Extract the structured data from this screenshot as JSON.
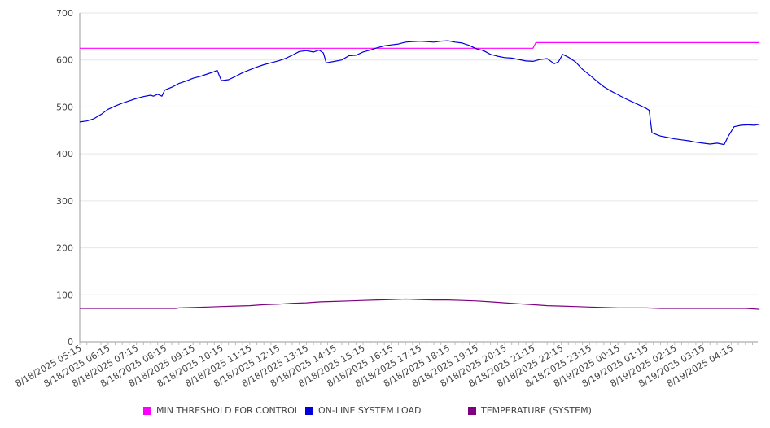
{
  "chart_data": {
    "type": "line",
    "title": "",
    "xlabel": "",
    "ylabel": "",
    "ylim": [
      0,
      700
    ],
    "yticks": [
      0,
      100,
      200,
      300,
      400,
      500,
      600,
      700
    ],
    "grid": true,
    "legend_position": "bottom",
    "x_tick_labels": [
      "8/18/2025 05:15",
      "8/18/2025 06:15",
      "8/18/2025 07:15",
      "8/18/2025 08:15",
      "8/18/2025 09:15",
      "8/18/2025 10:15",
      "8/18/2025 11:15",
      "8/18/2025 12:15",
      "8/18/2025 13:15",
      "8/18/2025 14:15",
      "8/18/2025 15:15",
      "8/18/2025 16:15",
      "8/18/2025 17:15",
      "8/18/2025 18:15",
      "8/18/2025 19:15",
      "8/18/2025 20:15",
      "8/18/2025 21:15",
      "8/18/2025 22:15",
      "8/18/2025 23:15",
      "8/19/2025 00:15",
      "8/19/2025 01:15",
      "8/19/2025 02:15",
      "8/19/2025 03:15",
      "8/19/2025 04:15"
    ],
    "series": [
      {
        "name": "MIN THRESHOLD FOR CONTROL",
        "color": "#ff00ff",
        "points": [
          [
            0,
            625
          ],
          [
            16,
            625
          ],
          [
            16.1,
            637
          ],
          [
            24,
            637
          ]
        ]
      },
      {
        "name": "ON-LINE SYSTEM LOAD",
        "color": "#0000dd",
        "points": [
          [
            0,
            468
          ],
          [
            0.25,
            470
          ],
          [
            0.5,
            475
          ],
          [
            0.75,
            484
          ],
          [
            1,
            495
          ],
          [
            1.25,
            502
          ],
          [
            1.5,
            508
          ],
          [
            1.75,
            513
          ],
          [
            2,
            518
          ],
          [
            2.25,
            522
          ],
          [
            2.5,
            525
          ],
          [
            2.6,
            523
          ],
          [
            2.75,
            527
          ],
          [
            2.9,
            523
          ],
          [
            3,
            536
          ],
          [
            3.25,
            542
          ],
          [
            3.5,
            550
          ],
          [
            3.75,
            555
          ],
          [
            4,
            561
          ],
          [
            4.25,
            565
          ],
          [
            4.5,
            570
          ],
          [
            4.75,
            575
          ],
          [
            4.85,
            578
          ],
          [
            5,
            556
          ],
          [
            5.25,
            558
          ],
          [
            5.5,
            565
          ],
          [
            5.75,
            573
          ],
          [
            6,
            579
          ],
          [
            6.25,
            585
          ],
          [
            6.5,
            590
          ],
          [
            6.75,
            594
          ],
          [
            7,
            598
          ],
          [
            7.25,
            603
          ],
          [
            7.5,
            610
          ],
          [
            7.75,
            618
          ],
          [
            8,
            620
          ],
          [
            8.25,
            617
          ],
          [
            8.45,
            621
          ],
          [
            8.6,
            615
          ],
          [
            8.7,
            594
          ],
          [
            9,
            597
          ],
          [
            9.25,
            600
          ],
          [
            9.5,
            609
          ],
          [
            9.75,
            610
          ],
          [
            10,
            617
          ],
          [
            10.25,
            621
          ],
          [
            10.5,
            626
          ],
          [
            10.75,
            630
          ],
          [
            11,
            632
          ],
          [
            11.25,
            634
          ],
          [
            11.5,
            638
          ],
          [
            11.75,
            639
          ],
          [
            12,
            640
          ],
          [
            12.25,
            639
          ],
          [
            12.5,
            638
          ],
          [
            12.75,
            640
          ],
          [
            13,
            641
          ],
          [
            13.25,
            638
          ],
          [
            13.5,
            636
          ],
          [
            13.75,
            631
          ],
          [
            14,
            624
          ],
          [
            14.25,
            620
          ],
          [
            14.5,
            612
          ],
          [
            14.75,
            608
          ],
          [
            15,
            605
          ],
          [
            15.25,
            604
          ],
          [
            15.5,
            601
          ],
          [
            15.75,
            598
          ],
          [
            16,
            597
          ],
          [
            16.25,
            601
          ],
          [
            16.5,
            603
          ],
          [
            16.75,
            592
          ],
          [
            16.9,
            596
          ],
          [
            17.05,
            612
          ],
          [
            17.25,
            606
          ],
          [
            17.5,
            596
          ],
          [
            17.75,
            580
          ],
          [
            18,
            568
          ],
          [
            18.25,
            555
          ],
          [
            18.5,
            543
          ],
          [
            18.75,
            534
          ],
          [
            19,
            526
          ],
          [
            19.25,
            518
          ],
          [
            19.5,
            511
          ],
          [
            19.75,
            504
          ],
          [
            20,
            497
          ],
          [
            20.1,
            493
          ],
          [
            20.2,
            445
          ],
          [
            20.5,
            438
          ],
          [
            20.75,
            435
          ],
          [
            21,
            432
          ],
          [
            21.25,
            430
          ],
          [
            21.5,
            428
          ],
          [
            21.75,
            425
          ],
          [
            22,
            423
          ],
          [
            22.25,
            421
          ],
          [
            22.5,
            423
          ],
          [
            22.75,
            420
          ],
          [
            22.9,
            438
          ],
          [
            23.1,
            458
          ],
          [
            23.35,
            461
          ],
          [
            23.6,
            462
          ],
          [
            23.8,
            461
          ],
          [
            24,
            463
          ]
        ]
      },
      {
        "name": "TEMPERATURE (SYSTEM)",
        "color": "#800080",
        "points": [
          [
            0,
            71
          ],
          [
            3.4,
            71
          ],
          [
            3.5,
            72
          ],
          [
            4,
            73
          ],
          [
            4.5,
            74
          ],
          [
            5,
            75
          ],
          [
            5.5,
            76
          ],
          [
            6,
            77
          ],
          [
            6.5,
            79
          ],
          [
            7,
            80
          ],
          [
            7.5,
            82
          ],
          [
            8,
            83
          ],
          [
            8.5,
            85
          ],
          [
            9,
            86
          ],
          [
            9.5,
            87
          ],
          [
            10,
            88
          ],
          [
            10.5,
            89
          ],
          [
            11,
            90
          ],
          [
            11.5,
            91
          ],
          [
            12,
            90
          ],
          [
            12.5,
            89
          ],
          [
            13,
            89
          ],
          [
            13.5,
            88
          ],
          [
            14,
            87
          ],
          [
            14.5,
            85
          ],
          [
            15,
            83
          ],
          [
            15.5,
            81
          ],
          [
            16,
            79
          ],
          [
            16.5,
            77
          ],
          [
            17,
            76
          ],
          [
            17.5,
            75
          ],
          [
            18,
            74
          ],
          [
            18.5,
            73
          ],
          [
            19,
            72
          ],
          [
            19.5,
            72
          ],
          [
            20,
            72
          ],
          [
            20.5,
            71
          ],
          [
            21,
            71
          ],
          [
            21.5,
            71
          ],
          [
            22,
            71
          ],
          [
            22.5,
            71
          ],
          [
            23,
            71
          ],
          [
            23.5,
            71
          ],
          [
            23.8,
            70
          ],
          [
            24,
            69
          ]
        ]
      }
    ]
  }
}
